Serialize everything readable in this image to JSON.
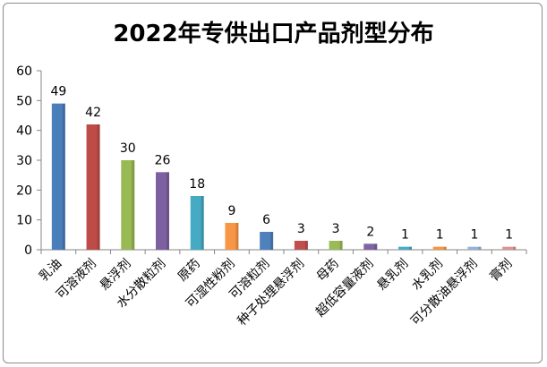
{
  "chart_data": {
    "type": "bar",
    "title": "2022年专供出口产品剂型分布",
    "categories": [
      "乳油",
      "可溶液剂",
      "悬浮剂",
      "水分散粒剂",
      "原药",
      "可湿性粉剂",
      "可溶粒剂",
      "种子处理悬浮剂",
      "母药",
      "超低容量液剂",
      "悬乳剂",
      "水乳剂",
      "可分散油悬浮剂",
      "膏剂"
    ],
    "values": [
      49,
      42,
      30,
      26,
      18,
      9,
      6,
      3,
      3,
      2,
      1,
      1,
      1,
      1
    ],
    "colors": [
      "#4a7ebb",
      "#be4b48",
      "#98b954",
      "#7d60a0",
      "#46aac5",
      "#f79646",
      "#4f81bd",
      "#c0504d",
      "#9bbb59",
      "#8064a2",
      "#4bacc6",
      "#f79646",
      "#95b3d7",
      "#d99694"
    ],
    "ylim": [
      0,
      60
    ],
    "yticks": [
      0,
      10,
      20,
      30,
      40,
      50,
      60
    ],
    "grid": false,
    "legend": "none"
  }
}
